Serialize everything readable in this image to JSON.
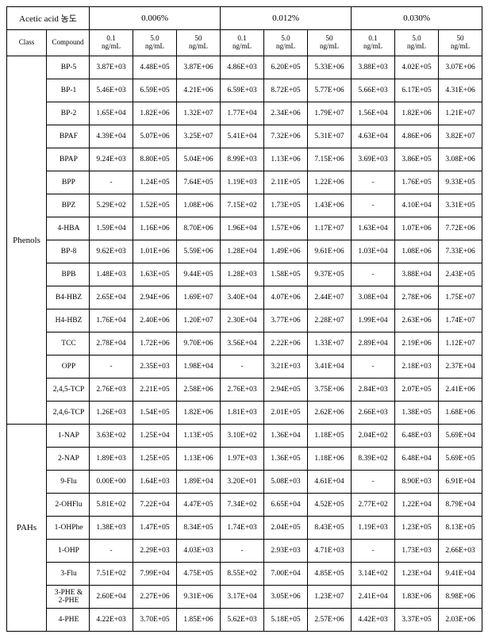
{
  "header": {
    "acetic_label": "Acetic acid 농도",
    "class_label": "Class",
    "compound_label": "Compound",
    "conc_groups": [
      "0.006%",
      "0.012%",
      "0.030%"
    ],
    "sub_cols": [
      "0.1\nng/mL",
      "5.0\nng/mL",
      "50\nng/mL"
    ]
  },
  "groups": [
    {
      "class": "Phenols",
      "rows": [
        {
          "compound": "BP-5",
          "v": [
            "3.87E+03",
            "4.48E+05",
            "3.87E+06",
            "4.86E+03",
            "6.20E+05",
            "5.33E+06",
            "3.88E+03",
            "4.02E+05",
            "3.07E+06"
          ]
        },
        {
          "compound": "BP-1",
          "v": [
            "5.46E+03",
            "6.59E+05",
            "4.21E+06",
            "6.59E+03",
            "8.72E+05",
            "5.77E+06",
            "5.66E+03",
            "6.17E+05",
            "4.31E+06"
          ]
        },
        {
          "compound": "BP-2",
          "v": [
            "1.65E+04",
            "1.82E+06",
            "1.32E+07",
            "1.77E+04",
            "2.34E+06",
            "1.79E+07",
            "1.56E+04",
            "1.82E+06",
            "1.21E+07"
          ]
        },
        {
          "compound": "BPAF",
          "v": [
            "4.39E+04",
            "5.07E+06",
            "3.25E+07",
            "5.41E+04",
            "7.32E+06",
            "5.31E+07",
            "4.63E+04",
            "4.86E+06",
            "3.82E+07"
          ]
        },
        {
          "compound": "BPAP",
          "v": [
            "9.24E+03",
            "8.80E+05",
            "5.04E+06",
            "8.99E+03",
            "1.13E+06",
            "7.15E+06",
            "3.69E+03",
            "3.86E+05",
            "3.08E+06"
          ]
        },
        {
          "compound": "BPP",
          "v": [
            "-",
            "1.24E+05",
            "7.64E+05",
            "1.19E+03",
            "2.11E+05",
            "1.22E+06",
            "-",
            "1.76E+05",
            "9.33E+05"
          ]
        },
        {
          "compound": "BPZ",
          "v": [
            "5.29E+02",
            "1.52E+05",
            "1.08E+06",
            "7.15E+02",
            "1.73E+05",
            "1.43E+06",
            "-",
            "4.10E+04",
            "3.31E+05"
          ]
        },
        {
          "compound": "4-HBA",
          "v": [
            "1.59E+04",
            "1.16E+06",
            "8.70E+06",
            "1.96E+04",
            "1.57E+06",
            "1.17E+07",
            "1.63E+04",
            "1.07E+06",
            "7.72E+06"
          ]
        },
        {
          "compound": "BP-8",
          "v": [
            "9.62E+03",
            "1.01E+06",
            "5.59E+06",
            "1.28E+04",
            "1.49E+06",
            "9.61E+06",
            "1.03E+04",
            "1.08E+06",
            "7.33E+06"
          ]
        },
        {
          "compound": "BPB",
          "v": [
            "1.48E+03",
            "1.63E+05",
            "9.44E+05",
            "1.28E+03",
            "1.58E+05",
            "9.37E+05",
            "-",
            "3.88E+04",
            "2.43E+05"
          ]
        },
        {
          "compound": "B4-HBZ",
          "v": [
            "2.65E+04",
            "2.94E+06",
            "1.69E+07",
            "3.40E+04",
            "4.07E+06",
            "2.44E+07",
            "3.08E+04",
            "2.78E+06",
            "1.75E+07"
          ]
        },
        {
          "compound": "H4-HBZ",
          "v": [
            "1.76E+04",
            "2.40E+06",
            "1.20E+07",
            "2.30E+04",
            "3.77E+06",
            "2.28E+07",
            "1.99E+04",
            "2.63E+06",
            "1.74E+07"
          ]
        },
        {
          "compound": "TCC",
          "v": [
            "2.78E+04",
            "1.72E+06",
            "9.70E+06",
            "3.56E+04",
            "2.22E+06",
            "1.33E+07",
            "2.89E+04",
            "2.19E+06",
            "1.12E+07"
          ]
        },
        {
          "compound": "OPP",
          "v": [
            "-",
            "2.35E+03",
            "1.98E+04",
            "-",
            "3.21E+03",
            "3.41E+04",
            "-",
            "2.18E+03",
            "2.37E+04"
          ]
        },
        {
          "compound": "2,4,5-TCP",
          "v": [
            "2.76E+03",
            "2.21E+05",
            "2.58E+06",
            "2.76E+03",
            "2.94E+05",
            "3.75E+06",
            "2.84E+03",
            "2.07E+05",
            "2.41E+06"
          ]
        },
        {
          "compound": "2,4,6-TCP",
          "v": [
            "1.26E+03",
            "1.54E+05",
            "1.82E+06",
            "1.81E+03",
            "2.01E+05",
            "2.62E+06",
            "2.66E+03",
            "1.38E+05",
            "1.68E+06"
          ]
        }
      ]
    },
    {
      "class": "PAHs",
      "rows": [
        {
          "compound": "1-NAP",
          "v": [
            "3.63E+02",
            "1.25E+04",
            "1.13E+05",
            "3.10E+02",
            "1.36E+04",
            "1.18E+05",
            "2.04E+02",
            "6.48E+03",
            "5.69E+04"
          ]
        },
        {
          "compound": "2-NAP",
          "v": [
            "1.89E+03",
            "1.25E+05",
            "1.13E+06",
            "1.97E+03",
            "1.36E+05",
            "1.18E+06",
            "8.39E+02",
            "6.48E+04",
            "5.69E+05"
          ]
        },
        {
          "compound": "9-Flu",
          "v": [
            "0.00E+00",
            "1.64E+03",
            "1.89E+04",
            "3.20E+01",
            "5.08E+03",
            "4.61E+04",
            "-",
            "8.90E+03",
            "6.91E+04"
          ]
        },
        {
          "compound": "2-OHFlu",
          "v": [
            "5.81E+02",
            "7.22E+04",
            "4.47E+05",
            "7.34E+02",
            "6.65E+04",
            "4.52E+05",
            "2.77E+02",
            "1.22E+04",
            "8.79E+04"
          ]
        },
        {
          "compound": "1-OHPhe",
          "v": [
            "1.38E+03",
            "1.47E+05",
            "8.34E+05",
            "1.74E+03",
            "2.04E+05",
            "8.43E+05",
            "1.19E+03",
            "1.23E+05",
            "8.13E+05"
          ]
        },
        {
          "compound": "1-OHP",
          "v": [
            "-",
            "2.29E+03",
            "4.03E+03",
            "-",
            "2.93E+03",
            "4.71E+03",
            "-",
            "1.73E+03",
            "2.66E+03"
          ]
        },
        {
          "compound": "3-Flu",
          "v": [
            "7.51E+02",
            "7.99E+04",
            "4.75E+05",
            "8.55E+02",
            "7.00E+04",
            "4.85E+05",
            "3.14E+02",
            "1.23E+04",
            "9.41E+04"
          ]
        },
        {
          "compound": "3-PHE & 2-PHE",
          "v": [
            "2.60E+04",
            "2.27E+06",
            "9.31E+06",
            "3.17E+04",
            "3.05E+06",
            "1.23E+07",
            "2.41E+04",
            "1.83E+06",
            "8.98E+06"
          ]
        },
        {
          "compound": "4-PHE",
          "v": [
            "4.22E+03",
            "3.70E+05",
            "1.85E+06",
            "5.62E+03",
            "5.18E+05",
            "2.57E+06",
            "4.42E+03",
            "3.37E+05",
            "2.03E+06"
          ]
        }
      ]
    }
  ]
}
